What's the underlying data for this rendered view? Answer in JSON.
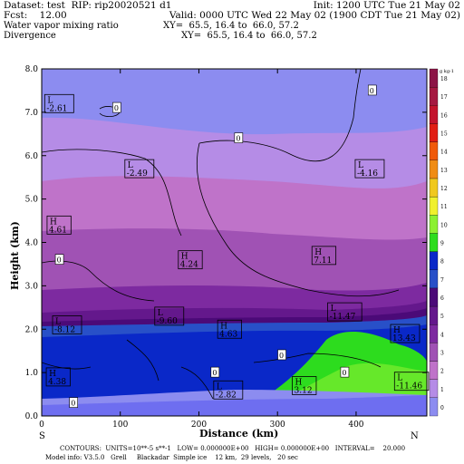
{
  "header": {
    "line1_left": "Dataset: test  RIP: rip20020521 d1",
    "line1_right": "Init: 1200 UTC Tue 21 May 02",
    "line2_left": "Fcst:    12.00",
    "line2_right": "Valid: 0000 UTC Wed 22 May 02 (1900 CDT Tue 21 May 02)",
    "line3_left": "Water vapor mixing ratio",
    "line3_right": "XY=  65.5, 16.4 to  66.0, 57.2",
    "line4_left": "Divergence",
    "line4_right": "XY=  65.5, 16.4 to  66.0, 57.2"
  },
  "footer": {
    "line1": "CONTOURS:  UNITS=10**-5 s**-1   LOW= 0.000000E+00   HIGH= 0.000000E+00   INTERVAL=    20.000",
    "line2": "Model info: V3.5.0   Grell     Blackadar  Simple ice    12 km,  29 levels,   20 sec"
  },
  "chart_data": {
    "type": "heatmap",
    "xlabel": "Distance (km)",
    "ylabel": "Height (km)",
    "xlim": [
      0,
      490
    ],
    "ylim": [
      0,
      8
    ],
    "xticks": [
      0,
      100,
      200,
      300,
      400
    ],
    "yticks": [
      0.0,
      1.0,
      2.0,
      3.0,
      4.0,
      5.0,
      6.0,
      7.0,
      8.0
    ],
    "x_end_labels": {
      "left": "S",
      "right": "N"
    },
    "colorbar": {
      "unit_label": "g kg-1",
      "levels": [
        0,
        1,
        2,
        3,
        4,
        5,
        6,
        7,
        8,
        9,
        10,
        11,
        12,
        13,
        14,
        15,
        16,
        17,
        18
      ],
      "colors": [
        "#8c8cf0",
        "#b58ce6",
        "#bf73c9",
        "#a052b4",
        "#7d2aa0",
        "#64188c",
        "#4b0a78",
        "#2850c8",
        "#0a28c8",
        "#2ddc1e",
        "#8cf032",
        "#f0f02d",
        "#f0c81e",
        "#f08c14",
        "#f05a0a",
        "#e11e14",
        "#c3142d",
        "#a51941",
        "#8c1446"
      ]
    },
    "cells": [
      {
        "label": "L",
        "value": "-2.61",
        "x": 5,
        "y": 7.2
      },
      {
        "label": "L",
        "value": "-2.49",
        "x": 107,
        "y": 5.7
      },
      {
        "label": "L",
        "value": "-4.16",
        "x": 400,
        "y": 5.7
      },
      {
        "label": "H",
        "value": "4.61",
        "x": 8,
        "y": 4.4
      },
      {
        "label": "H",
        "value": "4.24",
        "x": 175,
        "y": 3.6
      },
      {
        "label": "H",
        "value": "7.11",
        "x": 345,
        "y": 3.7
      },
      {
        "label": "L",
        "value": "-9.60",
        "x": 145,
        "y": 2.3
      },
      {
        "label": "L",
        "value": "-11.47",
        "x": 365,
        "y": 2.4
      },
      {
        "label": "L",
        "value": "-8.12",
        "x": 15,
        "y": 2.1
      },
      {
        "label": "H",
        "value": "4.63",
        "x": 225,
        "y": 2.0
      },
      {
        "label": "H",
        "value": "13.43",
        "x": 445,
        "y": 1.9
      },
      {
        "label": "H",
        "value": "4.38",
        "x": 7,
        "y": 0.9
      },
      {
        "label": "L",
        "value": "-2.82",
        "x": 220,
        "y": 0.6
      },
      {
        "label": "H",
        "value": "3.12",
        "x": 320,
        "y": 0.7
      },
      {
        "label": "L",
        "value": "-11.46",
        "x": 450,
        "y": 0.8
      }
    ],
    "zero_labels": [
      {
        "value": "0",
        "x": 95,
        "y": 7.1
      },
      {
        "value": "0",
        "x": 250,
        "y": 6.4
      },
      {
        "value": "0",
        "x": 420,
        "y": 7.5
      },
      {
        "value": "0",
        "x": 22,
        "y": 3.6
      },
      {
        "value": "0",
        "x": 305,
        "y": 1.4
      },
      {
        "value": "0",
        "x": 385,
        "y": 1.0
      },
      {
        "value": "0",
        "x": 220,
        "y": 1.0
      },
      {
        "value": "0",
        "x": 40,
        "y": 0.3
      }
    ]
  }
}
